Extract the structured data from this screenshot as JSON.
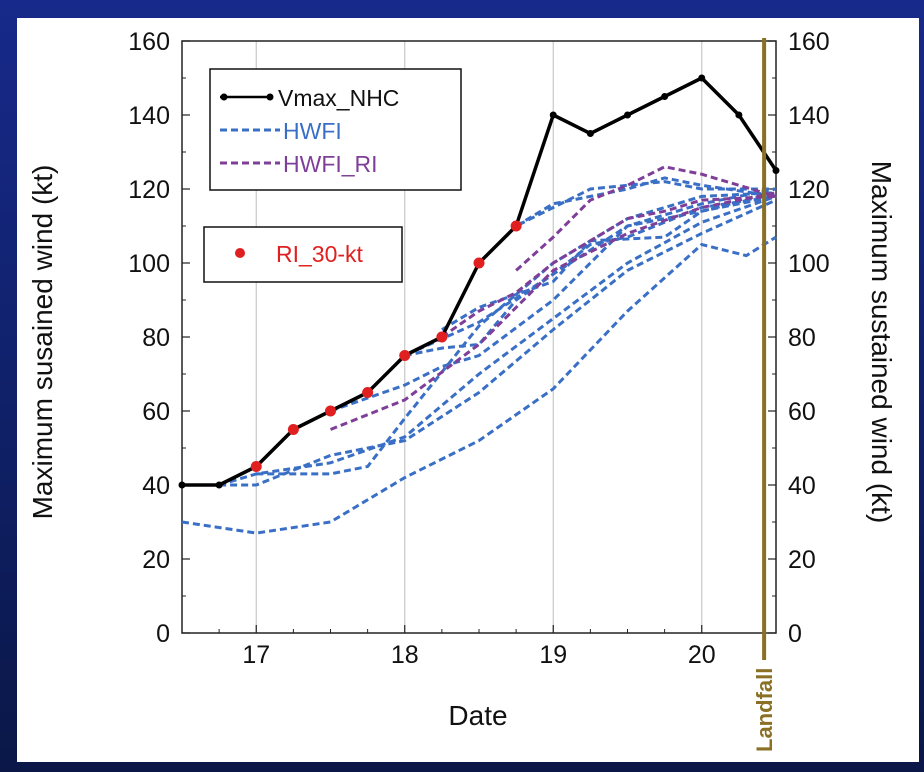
{
  "colors": {
    "background": "#12237a",
    "nhc": "#000000",
    "hwfi": "#3a6fc6",
    "hwfi_ri": "#7f3f98",
    "ri_marker": "#e02020",
    "landfall": "#8a7025",
    "grid": "#c8c8c8"
  },
  "chart_data": {
    "type": "line",
    "xlabel": "Date",
    "ylabel_left": "Maximum susained wind (kt)",
    "ylabel_right": "Maximum sustained wind (kt)",
    "xlim": [
      16.5,
      20.5
    ],
    "ylim": [
      0,
      160
    ],
    "xticks": [
      17,
      18,
      19,
      20
    ],
    "xtick_labels": [
      "17",
      "18",
      "19",
      "20"
    ],
    "yticks": [
      0,
      20,
      40,
      60,
      80,
      100,
      120,
      140,
      160
    ],
    "ytick_labels": [
      "0",
      "20",
      "40",
      "60",
      "80",
      "100",
      "120",
      "140",
      "160"
    ],
    "grid": "vertical lines at date ticks",
    "legend_placement": "upper-left",
    "landfall": {
      "x": 20.42,
      "label": "Landfall"
    },
    "series": [
      {
        "name": "Vmax_NHC",
        "style": "solid-black-with-dots",
        "x": [
          16.5,
          16.75,
          17.0,
          17.25,
          17.5,
          17.75,
          18.0,
          18.25,
          18.5,
          18.75,
          19.0,
          19.25,
          19.5,
          19.75,
          20.0,
          20.25,
          20.5
        ],
        "y": [
          40,
          40,
          45,
          55,
          60,
          65,
          75,
          80,
          100,
          110,
          140,
          135,
          140,
          145,
          150,
          140,
          125
        ]
      },
      {
        "name": "RI_30-kt",
        "style": "red-dots",
        "x": [
          17.0,
          17.25,
          17.5,
          17.75,
          18.0,
          18.25,
          18.5,
          18.75
        ],
        "y": [
          45,
          55,
          60,
          65,
          75,
          80,
          100,
          110
        ]
      },
      {
        "name": "HWFI",
        "style": "dashed-blue",
        "tracks": [
          {
            "x": [
              16.5,
              17.0,
              17.5,
              18.0,
              18.5,
              19.0,
              19.5,
              20.0,
              20.3,
              20.5
            ],
            "y": [
              30,
              27,
              30,
              42,
              52,
              66,
              87,
              105,
              102,
              107
            ]
          },
          {
            "x": [
              16.75,
              17.0,
              17.5,
              18.0,
              18.5,
              19.0,
              19.5,
              20.0,
              20.5
            ],
            "y": [
              40,
              43,
              46,
              53,
              70,
              85,
              100,
              111,
              118
            ]
          },
          {
            "x": [
              16.75,
              17.0,
              17.5,
              18.0,
              18.5,
              19.0,
              19.5,
              20.0,
              20.5
            ],
            "y": [
              40,
              40,
              48,
              52,
              65,
              82,
              98,
              108,
              117
            ]
          },
          {
            "x": [
              17.0,
              17.5,
              17.75,
              18.0,
              18.5,
              19.0,
              19.5,
              20.0,
              20.5
            ],
            "y": [
              43,
              43,
              45,
              58,
              83,
              100,
              112,
              118,
              119
            ]
          },
          {
            "x": [
              17.5,
              18.0,
              18.25,
              18.5,
              19.0,
              19.5,
              20.0,
              20.5
            ],
            "y": [
              60,
              67,
              72,
              75,
              90,
              110,
              116,
              120
            ]
          },
          {
            "x": [
              17.75,
              18.0,
              18.5,
              19.0,
              19.5,
              20.0,
              20.5
            ],
            "y": [
              65,
              75,
              84,
              97,
              110,
              114,
              118
            ]
          },
          {
            "x": [
              18.0,
              18.25,
              18.5,
              18.75,
              19.0,
              19.25,
              19.5,
              20.0,
              20.5
            ],
            "y": [
              75,
              77,
              78,
              90,
              97,
              105,
              107,
              115,
              118
            ]
          },
          {
            "x": [
              18.25,
              18.5,
              19.0,
              19.25,
              19.75,
              20.0,
              20.5
            ],
            "y": [
              82,
              88,
              95,
              106,
              107,
              114,
              119
            ]
          },
          {
            "x": [
              18.5,
              18.75,
              19.0,
              19.25,
              19.5,
              19.75,
              20.0,
              20.5
            ],
            "y": [
              100,
              110,
              115,
              120,
              121,
              122,
              120,
              120
            ]
          },
          {
            "x": [
              18.75,
              19.0,
              19.25,
              19.5,
              19.75,
              20.0,
              20.5
            ],
            "y": [
              110,
              116,
              118,
              120,
              123,
              121,
              118
            ]
          }
        ]
      },
      {
        "name": "HWFI_RI",
        "style": "dashed-purple",
        "tracks": [
          {
            "x": [
              17.5,
              18.0,
              18.5,
              19.0,
              19.5,
              20.0,
              20.5
            ],
            "y": [
              55,
              63,
              78,
              98,
              108,
              115,
              119
            ]
          },
          {
            "x": [
              18.25,
              18.5,
              18.75,
              19.0,
              19.25,
              19.5,
              19.75,
              20.0,
              20.5
            ],
            "y": [
              80,
              87,
              92,
              100,
              106,
              112,
              114,
              117,
              118
            ]
          },
          {
            "x": [
              18.75,
              19.0,
              19.25,
              19.5,
              19.75,
              20.0,
              20.5
            ],
            "y": [
              98,
              107,
              117,
              121,
              126,
              124,
              118
            ]
          }
        ]
      }
    ]
  }
}
